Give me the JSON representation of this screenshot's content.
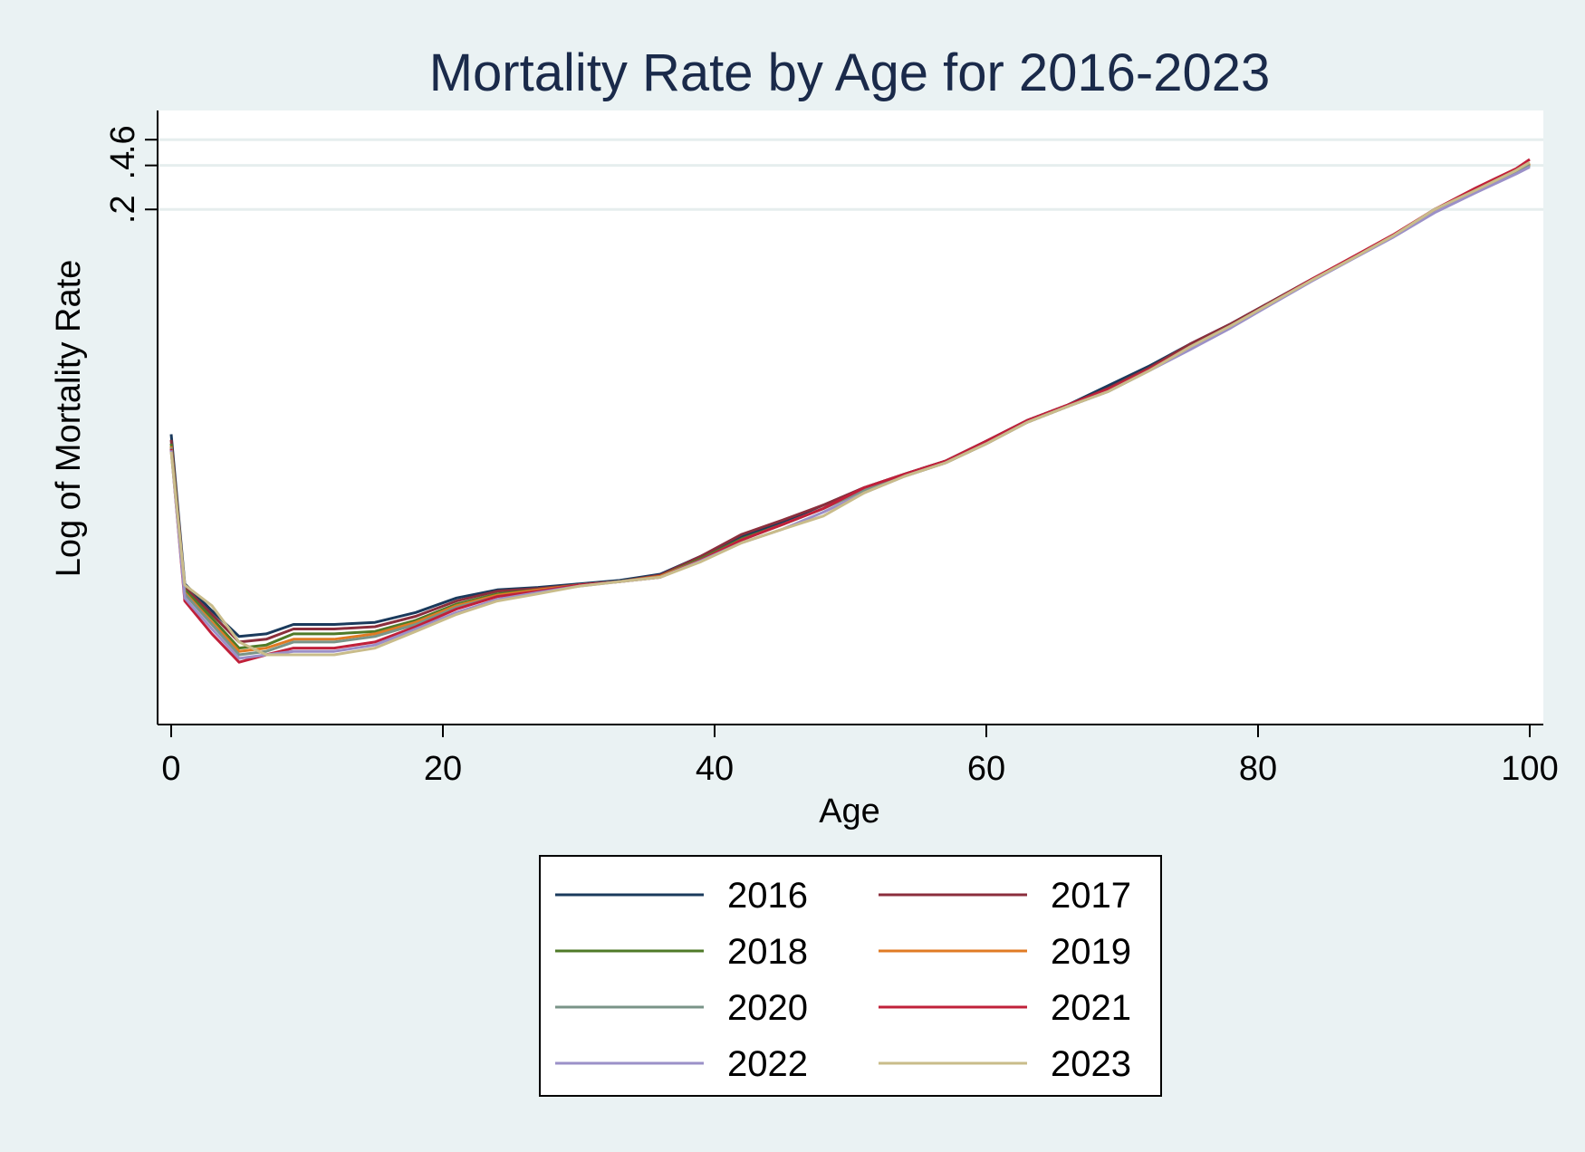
{
  "chart_data": {
    "type": "line",
    "title": "Mortality Rate by Age for 2016-2023",
    "xlabel": "Age",
    "ylabel": "Log of Mortality Rate",
    "xlim": [
      -1,
      101
    ],
    "ylim": [
      6e-05,
      0.95
    ],
    "log_y": true,
    "x_ticks": [
      0,
      20,
      40,
      60,
      80,
      100
    ],
    "x_tick_labels": [
      "0",
      "20",
      "40",
      "60",
      "80",
      "100"
    ],
    "y_ticks": [
      0.2,
      0.4,
      0.6
    ],
    "y_tick_labels": [
      ".2",
      ".4",
      ".6"
    ],
    "y_gridlines": true,
    "legend_placement": "bottom",
    "legend_columns": 2,
    "x": [
      0,
      1,
      3,
      5,
      7,
      9,
      12,
      15,
      18,
      21,
      24,
      27,
      30,
      33,
      36,
      39,
      42,
      45,
      48,
      51,
      54,
      57,
      60,
      63,
      66,
      69,
      72,
      75,
      78,
      81,
      84,
      87,
      90,
      93,
      96,
      99,
      100
    ],
    "series": [
      {
        "name": "2016",
        "color": "#1a3a5c",
        "values": [
          0.0058,
          0.00055,
          0.00036,
          0.00024,
          0.00025,
          0.00029,
          0.00029,
          0.0003,
          0.00035,
          0.00044,
          0.0005,
          0.00052,
          0.00055,
          0.00058,
          0.00064,
          0.00085,
          0.00115,
          0.00145,
          0.0019,
          0.0025,
          0.0031,
          0.0038,
          0.0052,
          0.0072,
          0.0092,
          0.0125,
          0.017,
          0.024,
          0.033,
          0.047,
          0.067,
          0.094,
          0.133,
          0.2,
          0.27,
          0.36,
          0.4
        ]
      },
      {
        "name": "2017",
        "color": "#8b2e3c",
        "values": [
          0.0053,
          0.00052,
          0.00034,
          0.00022,
          0.00023,
          0.00027,
          0.00027,
          0.00028,
          0.00033,
          0.00042,
          0.00049,
          0.00051,
          0.00054,
          0.00057,
          0.00063,
          0.00085,
          0.0012,
          0.0015,
          0.0019,
          0.0025,
          0.0031,
          0.0038,
          0.0052,
          0.0072,
          0.0092,
          0.012,
          0.0165,
          0.024,
          0.033,
          0.047,
          0.067,
          0.094,
          0.133,
          0.2,
          0.27,
          0.36,
          0.41
        ]
      },
      {
        "name": "2018",
        "color": "#4f7a28",
        "values": [
          0.005,
          0.0005,
          0.00032,
          0.0002,
          0.00021,
          0.00025,
          0.00025,
          0.00026,
          0.00031,
          0.0004,
          0.00047,
          0.0005,
          0.00054,
          0.00057,
          0.00062,
          0.00082,
          0.00112,
          0.0014,
          0.0018,
          0.0024,
          0.003,
          0.0037,
          0.005,
          0.007,
          0.009,
          0.0118,
          0.0162,
          0.023,
          0.032,
          0.046,
          0.066,
          0.093,
          0.132,
          0.2,
          0.27,
          0.36,
          0.41
        ]
      },
      {
        "name": "2019",
        "color": "#e07b24",
        "values": [
          0.0048,
          0.00048,
          0.0003,
          0.00019,
          0.0002,
          0.00023,
          0.00023,
          0.00025,
          0.0003,
          0.00039,
          0.00046,
          0.0005,
          0.00054,
          0.00057,
          0.00062,
          0.0008,
          0.0011,
          0.0014,
          0.0018,
          0.0024,
          0.003,
          0.0037,
          0.005,
          0.007,
          0.009,
          0.0116,
          0.016,
          0.023,
          0.032,
          0.046,
          0.066,
          0.093,
          0.132,
          0.2,
          0.27,
          0.36,
          0.41
        ]
      },
      {
        "name": "2020",
        "color": "#7a9488",
        "values": [
          0.0047,
          0.00047,
          0.00029,
          0.00018,
          0.00019,
          0.00022,
          0.00022,
          0.00024,
          0.00029,
          0.00038,
          0.00045,
          0.00049,
          0.00054,
          0.00057,
          0.00061,
          0.0008,
          0.0011,
          0.0014,
          0.0018,
          0.0024,
          0.003,
          0.0037,
          0.005,
          0.007,
          0.009,
          0.0114,
          0.0158,
          0.023,
          0.032,
          0.046,
          0.066,
          0.093,
          0.132,
          0.2,
          0.27,
          0.36,
          0.4
        ]
      },
      {
        "name": "2021",
        "color": "#c0203a",
        "values": [
          0.0046,
          0.00042,
          0.00025,
          0.00016,
          0.00018,
          0.0002,
          0.0002,
          0.00022,
          0.00028,
          0.00037,
          0.00045,
          0.00049,
          0.00054,
          0.00057,
          0.00061,
          0.0008,
          0.0011,
          0.0014,
          0.0018,
          0.0025,
          0.0031,
          0.0038,
          0.0052,
          0.0072,
          0.0092,
          0.0118,
          0.0162,
          0.023,
          0.032,
          0.046,
          0.067,
          0.095,
          0.135,
          0.2,
          0.28,
          0.38,
          0.44
        ]
      },
      {
        "name": "2022",
        "color": "#9b90c8",
        "values": [
          0.0045,
          0.00044,
          0.00027,
          0.00017,
          0.00018,
          0.00019,
          0.00019,
          0.00021,
          0.00027,
          0.00035,
          0.00043,
          0.00048,
          0.00053,
          0.00057,
          0.00061,
          0.00079,
          0.00105,
          0.0013,
          0.0017,
          0.0023,
          0.003,
          0.0037,
          0.005,
          0.007,
          0.009,
          0.0114,
          0.0158,
          0.022,
          0.031,
          0.045,
          0.065,
          0.092,
          0.13,
          0.19,
          0.26,
          0.35,
          0.39
        ]
      },
      {
        "name": "2023",
        "color": "#c9bc8a",
        "values": [
          0.0044,
          0.00054,
          0.00039,
          0.00022,
          0.00018,
          0.00018,
          0.00018,
          0.0002,
          0.00026,
          0.00034,
          0.00042,
          0.00047,
          0.00053,
          0.00057,
          0.00061,
          0.00078,
          0.00105,
          0.0013,
          0.0016,
          0.0023,
          0.003,
          0.0037,
          0.005,
          0.007,
          0.009,
          0.0114,
          0.0158,
          0.023,
          0.032,
          0.046,
          0.066,
          0.093,
          0.133,
          0.2,
          0.27,
          0.37,
          0.42
        ]
      }
    ]
  }
}
